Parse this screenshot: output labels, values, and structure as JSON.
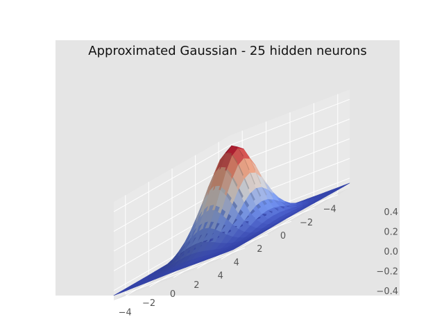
{
  "chart_data": {
    "type": "surface",
    "title": "Approximated Gaussian - 25 hidden neurons",
    "colormap": "coolwarm",
    "style": "ggplot",
    "grid": true,
    "xlim": [
      -5,
      5
    ],
    "ylim": [
      -5,
      5
    ],
    "zlim": [
      -0.5,
      0.5
    ],
    "x_ticks": [
      "−4",
      "−2",
      "0",
      "2",
      "4"
    ],
    "y_ticks": [
      "−4",
      "−2",
      "0",
      "2",
      "4"
    ],
    "z_ticks": [
      "−0.4",
      "−0.2",
      "0.0",
      "0.2",
      "0.4"
    ],
    "function": "z = 0.95*exp(-(x^2+y^2)/5) - 0.45",
    "grid_size": 21,
    "peak_z": 0.5,
    "base_z": -0.45,
    "colors": {
      "background": "#e5e5e5",
      "gridline": "#ffffff",
      "low": "#3b4cc0",
      "mid": "#dddddd",
      "high": "#b40426"
    }
  }
}
